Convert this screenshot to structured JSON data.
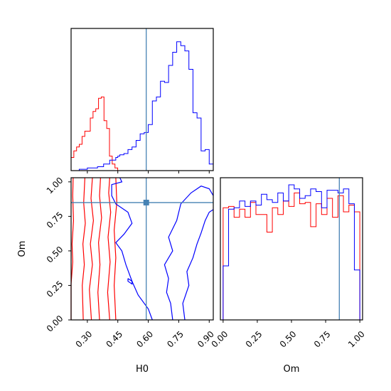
{
  "chart_data": [
    {
      "panel": "H0 marginal",
      "type": "histogram",
      "x_range": [
        0.22,
        0.92
      ],
      "truth": 0.59,
      "series": [
        {
          "color": "#ff0000",
          "edges": [
            0.22,
            0.2335,
            0.247,
            0.2605,
            0.274,
            0.2875,
            0.301,
            0.3145,
            0.328,
            0.3415,
            0.355,
            0.3685,
            0.382,
            0.3955,
            0.409,
            0.4225,
            0.436,
            0.4495
          ],
          "heights": [
            0.1,
            0.15,
            0.18,
            0.2,
            0.26,
            0.3,
            0.3,
            0.4,
            0.45,
            0.47,
            0.55,
            0.56,
            0.38,
            0.32,
            0.11,
            0.05,
            0.02
          ]
        },
        {
          "color": "#0000ff",
          "edges": [
            0.22,
            0.26,
            0.3,
            0.35,
            0.38,
            0.41,
            0.44,
            0.45,
            0.46,
            0.48,
            0.5,
            0.52,
            0.54,
            0.56,
            0.58,
            0.6,
            0.62,
            0.64,
            0.66,
            0.68,
            0.7,
            0.72,
            0.74,
            0.76,
            0.78,
            0.8,
            0.82,
            0.84,
            0.86,
            0.88,
            0.9,
            0.92
          ],
          "heights": [
            0.0,
            0.01,
            0.02,
            0.03,
            0.05,
            0.08,
            0.1,
            0.11,
            0.12,
            0.13,
            0.16,
            0.18,
            0.23,
            0.28,
            0.29,
            0.35,
            0.53,
            0.56,
            0.68,
            0.67,
            0.8,
            0.9,
            0.98,
            0.95,
            0.91,
            0.77,
            0.44,
            0.4,
            0.15,
            0.16,
            0.05
          ]
        }
      ]
    },
    {
      "panel": "H0 vs Om contours",
      "type": "contour",
      "x_range": [
        0.22,
        0.92
      ],
      "y_range": [
        0.0,
        1.03
      ],
      "truth": [
        0.59,
        0.85
      ],
      "series": [
        {
          "color": "#ff0000",
          "contours": [
            [
              [
                0.22,
                0.0
              ],
              [
                0.22,
                0.26
              ],
              [
                0.228,
                0.42
              ],
              [
                0.225,
                0.55
              ],
              [
                0.232,
                0.72
              ],
              [
                0.228,
                0.9
              ],
              [
                0.23,
                1.03
              ]
            ],
            [
              [
                0.28,
                0.0
              ],
              [
                0.275,
                0.25
              ],
              [
                0.285,
                0.4
              ],
              [
                0.278,
                0.55
              ],
              [
                0.29,
                0.7
              ],
              [
                0.282,
                0.85
              ],
              [
                0.288,
                1.03
              ]
            ],
            [
              [
                0.32,
                0.0
              ],
              [
                0.31,
                0.22
              ],
              [
                0.325,
                0.4
              ],
              [
                0.315,
                0.55
              ],
              [
                0.33,
                0.72
              ],
              [
                0.318,
                0.88
              ],
              [
                0.325,
                1.03
              ]
            ],
            [
              [
                0.36,
                0.0
              ],
              [
                0.352,
                0.2
              ],
              [
                0.362,
                0.4
              ],
              [
                0.355,
                0.56
              ],
              [
                0.37,
                0.74
              ],
              [
                0.36,
                0.9
              ],
              [
                0.365,
                1.03
              ]
            ],
            [
              [
                0.41,
                0.0
              ],
              [
                0.4,
                0.2
              ],
              [
                0.412,
                0.42
              ],
              [
                0.402,
                0.6
              ],
              [
                0.415,
                0.78
              ],
              [
                0.405,
                0.92
              ],
              [
                0.41,
                1.03
              ]
            ],
            [
              [
                0.44,
                0.0
              ],
              [
                0.432,
                0.25
              ],
              [
                0.44,
                0.45
              ],
              [
                0.432,
                0.65
              ],
              [
                0.445,
                0.85
              ],
              [
                0.44,
                1.03
              ]
            ]
          ]
        },
        {
          "color": "#0000ff",
          "contours": [
            [
              [
                0.62,
                0.0
              ],
              [
                0.6,
                0.08
              ],
              [
                0.55,
                0.18
              ],
              [
                0.52,
                0.28
              ],
              [
                0.49,
                0.4
              ],
              [
                0.47,
                0.5
              ],
              [
                0.44,
                0.56
              ],
              [
                0.48,
                0.62
              ],
              [
                0.52,
                0.7
              ],
              [
                0.5,
                0.78
              ],
              [
                0.44,
                0.84
              ],
              [
                0.42,
                0.9
              ],
              [
                0.42,
                0.98
              ],
              [
                0.47,
                1.0
              ],
              [
                0.46,
                1.03
              ]
            ],
            [
              [
                0.72,
                0.0
              ],
              [
                0.71,
                0.12
              ],
              [
                0.69,
                0.2
              ],
              [
                0.7,
                0.3
              ],
              [
                0.68,
                0.4
              ],
              [
                0.72,
                0.5
              ],
              [
                0.7,
                0.6
              ],
              [
                0.74,
                0.72
              ],
              [
                0.76,
                0.84
              ],
              [
                0.81,
                0.92
              ],
              [
                0.86,
                0.97
              ],
              [
                0.9,
                0.95
              ],
              [
                0.92,
                0.9
              ]
            ],
            [
              [
                0.78,
                0.0
              ],
              [
                0.77,
                0.12
              ],
              [
                0.8,
                0.25
              ],
              [
                0.79,
                0.35
              ],
              [
                0.82,
                0.45
              ],
              [
                0.84,
                0.55
              ],
              [
                0.86,
                0.63
              ],
              [
                0.88,
                0.72
              ],
              [
                0.9,
                0.78
              ],
              [
                0.92,
                0.8
              ]
            ],
            [
              [
                0.5,
                0.3
              ],
              [
                0.52,
                0.28
              ],
              [
                0.52,
                0.26
              ],
              [
                0.5,
                0.28
              ],
              [
                0.5,
                0.3
              ]
            ]
          ]
        }
      ]
    },
    {
      "panel": "Om marginal",
      "type": "histogram",
      "x_range": [
        -0.02,
        1.02
      ],
      "truth": 0.85,
      "series": [
        {
          "color": "#ff0000",
          "edges": [
            0.0,
            0.04,
            0.08,
            0.12,
            0.16,
            0.2,
            0.24,
            0.28,
            0.32,
            0.36,
            0.4,
            0.44,
            0.48,
            0.52,
            0.56,
            0.6,
            0.64,
            0.68,
            0.72,
            0.76,
            0.8,
            0.84,
            0.88,
            0.92,
            0.96,
            1.0
          ],
          "heights": [
            0.83,
            0.84,
            0.76,
            0.82,
            0.76,
            0.87,
            0.78,
            0.78,
            0.65,
            0.83,
            0.78,
            0.88,
            0.84,
            0.94,
            0.86,
            0.87,
            0.69,
            0.86,
            0.78,
            0.9,
            0.76,
            0.92,
            0.8,
            0.85,
            0.8
          ]
        },
        {
          "color": "#0000ff",
          "edges": [
            0.0,
            0.04,
            0.08,
            0.12,
            0.16,
            0.2,
            0.24,
            0.28,
            0.32,
            0.36,
            0.4,
            0.44,
            0.48,
            0.52,
            0.56,
            0.6,
            0.64,
            0.68,
            0.72,
            0.76,
            0.8,
            0.84,
            0.88,
            0.92,
            0.96,
            1.0
          ],
          "heights": [
            0.4,
            0.82,
            0.83,
            0.88,
            0.84,
            0.88,
            0.85,
            0.93,
            0.89,
            0.87,
            0.94,
            0.88,
            1.0,
            0.97,
            0.9,
            0.92,
            0.97,
            0.95,
            0.83,
            0.96,
            0.96,
            0.94,
            0.97,
            0.86,
            0.37
          ]
        }
      ]
    }
  ],
  "axes": {
    "h0_ticks": [
      "0.30",
      "0.45",
      "0.60",
      "0.75",
      "0.90"
    ],
    "om_ticks": [
      "0.00",
      "0.25",
      "0.50",
      "0.75",
      "1.00"
    ],
    "xlabel_left": "H0",
    "xlabel_right": "Om",
    "ylabel_left": "Om"
  },
  "colors": {
    "truth": "#4682b4",
    "frame": "#000000"
  }
}
